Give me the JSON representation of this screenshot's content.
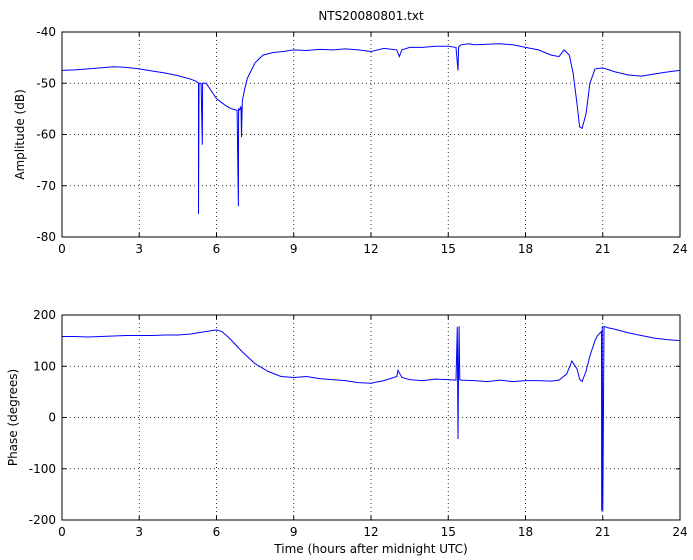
{
  "figure": {
    "title": "NTS20080801.txt"
  },
  "chart_data": [
    {
      "type": "line",
      "title": "NTS20080801.txt",
      "xlabel": "",
      "ylabel": "Amplitude (dB)",
      "xlim": [
        0,
        24
      ],
      "ylim": [
        -80,
        -40
      ],
      "xticks": [
        0,
        3,
        6,
        9,
        12,
        15,
        18,
        21,
        24
      ],
      "yticks": [
        -80,
        -70,
        -60,
        -50,
        -40
      ],
      "grid": true,
      "series": [
        {
          "color": "#0000ff",
          "x": [
            0,
            0.5,
            1,
            1.5,
            2,
            2.5,
            3,
            3.5,
            4,
            4.5,
            5,
            5.2,
            5.3,
            5.3,
            5.32,
            5.4,
            5.45,
            5.46,
            5.5,
            5.6,
            5.8,
            6,
            6.2,
            6.4,
            6.6,
            6.8,
            6.85,
            6.86,
            6.9,
            6.95,
            6.97,
            7,
            7.1,
            7.2,
            7.5,
            7.8,
            8.2,
            8.6,
            9,
            9.5,
            10,
            10.5,
            11,
            11.5,
            12,
            12.5,
            13,
            13.1,
            13.2,
            13.5,
            14,
            14.5,
            15,
            15.3,
            15.38,
            15.4,
            15.42,
            15.5,
            15.8,
            16,
            16.5,
            17,
            17.5,
            18,
            18.5,
            19,
            19.3,
            19.5,
            19.7,
            19.85,
            20,
            20.1,
            20.2,
            20.35,
            20.5,
            20.7,
            21,
            21.5,
            22,
            22.5,
            23,
            23.5,
            24
          ],
          "y": [
            -47.5,
            -47.4,
            -47.2,
            -47,
            -46.8,
            -46.9,
            -47.2,
            -47.6,
            -48,
            -48.5,
            -49.2,
            -49.6,
            -50,
            -75.5,
            -50,
            -50,
            -62,
            -50,
            -50,
            -50,
            -51.5,
            -53,
            -53.8,
            -54.5,
            -55,
            -55.3,
            -74,
            -55,
            -55.2,
            -54.5,
            -60.5,
            -53.5,
            -51,
            -49,
            -46,
            -44.5,
            -44,
            -43.8,
            -43.5,
            -43.6,
            -43.4,
            -43.5,
            -43.3,
            -43.5,
            -43.8,
            -43.2,
            -43.5,
            -44.8,
            -43.5,
            -43,
            -43,
            -42.8,
            -42.8,
            -43,
            -47.5,
            -43,
            -42.8,
            -42.5,
            -42.3,
            -42.5,
            -42.4,
            -42.3,
            -42.5,
            -43,
            -43.5,
            -44.5,
            -44.8,
            -43.5,
            -44.5,
            -48,
            -54,
            -58.5,
            -58.8,
            -56,
            -50,
            -47.2,
            -47,
            -47.8,
            -48.4,
            -48.6,
            -48.2,
            -47.8,
            -47.5
          ]
        }
      ]
    },
    {
      "type": "line",
      "title": "",
      "xlabel": "Time (hours after midnight UTC)",
      "ylabel": "Phase (degrees)",
      "xlim": [
        0,
        24
      ],
      "ylim": [
        -200,
        200
      ],
      "xticks": [
        0,
        3,
        6,
        9,
        12,
        15,
        18,
        21,
        24
      ],
      "yticks": [
        -200,
        -100,
        0,
        100,
        200
      ],
      "grid": true,
      "series": [
        {
          "color": "#0000ff",
          "x": [
            0,
            0.5,
            1,
            1.5,
            2,
            2.5,
            3,
            3.5,
            4,
            4.5,
            5,
            5.5,
            6,
            6.2,
            6.5,
            7,
            7.5,
            8,
            8.5,
            9,
            9.5,
            10,
            10.5,
            11,
            11.5,
            12,
            12.5,
            13,
            13.05,
            13.2,
            13.5,
            14,
            14.5,
            15,
            15.3,
            15.35,
            15.38,
            15.4,
            15.42,
            15.45,
            15.5,
            16,
            16.5,
            17,
            17.5,
            18,
            18.5,
            19,
            19.3,
            19.6,
            19.8,
            20,
            20.1,
            20.2,
            20.35,
            20.5,
            20.7,
            20.8,
            20.9,
            20.95,
            20.96,
            20.98,
            21,
            21.05,
            21.2,
            21.5,
            22,
            22.5,
            23,
            23.5,
            24
          ],
          "y": [
            158,
            158,
            157,
            158,
            159,
            160,
            160,
            160,
            161,
            161,
            163,
            167,
            171,
            168,
            155,
            128,
            105,
            90,
            80,
            78,
            80,
            76,
            74,
            72,
            68,
            67,
            72,
            80,
            92,
            78,
            74,
            72,
            75,
            74,
            73,
            177,
            -42,
            100,
            178,
            74,
            73,
            72,
            70,
            73,
            70,
            72,
            72,
            71,
            73,
            85,
            110,
            95,
            75,
            70,
            90,
            120,
            150,
            160,
            165,
            168,
            -182,
            178,
            -182,
            178,
            175,
            172,
            165,
            160,
            155,
            152,
            150
          ]
        }
      ]
    }
  ]
}
